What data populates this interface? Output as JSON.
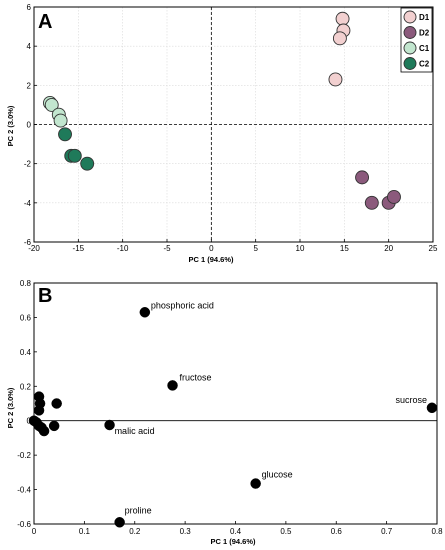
{
  "chart_data": [
    {
      "type": "scatter",
      "panel_label": "A",
      "xlabel": "PC 1 (94.6%)",
      "ylabel": "PC 2 (3.0%)",
      "xlim": [
        -20,
        25
      ],
      "ylim": [
        -6,
        6
      ],
      "xticks": [
        "-20",
        "-15",
        "-10",
        "-5",
        "0",
        "5",
        "10",
        "15",
        "20",
        "25"
      ],
      "yticks": [
        "-6",
        "-4",
        "-2",
        "0",
        "2",
        "4",
        "6"
      ],
      "grid": true,
      "zero_lines": "dashed",
      "legend_position": "top-right",
      "series": [
        {
          "name": "D1",
          "color": "#f2d0d0",
          "points": [
            [
              14.8,
              5.4
            ],
            [
              14.9,
              4.8
            ],
            [
              14.5,
              4.4
            ],
            [
              14.0,
              2.3
            ]
          ]
        },
        {
          "name": "D2",
          "color": "#8b5a7c",
          "points": [
            [
              17.0,
              -2.7
            ],
            [
              18.1,
              -4.0
            ],
            [
              20.0,
              -4.0
            ],
            [
              20.6,
              -3.7
            ]
          ]
        },
        {
          "name": "C1",
          "color": "#c2e6cf",
          "points": [
            [
              -18.2,
              1.1
            ],
            [
              -18.0,
              1.0
            ],
            [
              -17.2,
              0.5
            ],
            [
              -17.0,
              0.2
            ]
          ]
        },
        {
          "name": "C2",
          "color": "#1f7a5a",
          "points": [
            [
              -16.5,
              -0.5
            ],
            [
              -15.8,
              -1.6
            ],
            [
              -15.4,
              -1.6
            ],
            [
              -14.0,
              -2.0
            ]
          ]
        }
      ]
    },
    {
      "type": "scatter",
      "panel_label": "B",
      "xlabel": "PC 1 (94.6%)",
      "ylabel": "PC 2 (3.0%)",
      "xlim": [
        0,
        0.8
      ],
      "ylim": [
        -0.6,
        0.8
      ],
      "xticks": [
        "0",
        "0.1",
        "0.2",
        "0.3",
        "0.4",
        "0.5",
        "0.6",
        "0.7",
        "0.8"
      ],
      "yticks": [
        "-0.6",
        "-0.4",
        "-0.2",
        "0",
        "0.2",
        "0.4",
        "0.6",
        "0.8"
      ],
      "grid": false,
      "zero_lines": "solid-horizontal",
      "points": [
        {
          "label": "phosphoric acid",
          "x": 0.22,
          "y": 0.63
        },
        {
          "label": "fructose",
          "x": 0.275,
          "y": 0.205
        },
        {
          "label": "sucrose",
          "x": 0.79,
          "y": 0.075
        },
        {
          "label": "malic acid",
          "x": 0.15,
          "y": -0.025
        },
        {
          "label": "glucose",
          "x": 0.44,
          "y": -0.365
        },
        {
          "label": "proline",
          "x": 0.17,
          "y": -0.59
        },
        {
          "label": "",
          "x": 0.01,
          "y": 0.14
        },
        {
          "label": "",
          "x": 0.012,
          "y": 0.1
        },
        {
          "label": "",
          "x": 0.045,
          "y": 0.1
        },
        {
          "label": "",
          "x": 0.01,
          "y": 0.06
        },
        {
          "label": "",
          "x": 0.0,
          "y": 0.0
        },
        {
          "label": "",
          "x": 0.005,
          "y": -0.01
        },
        {
          "label": "",
          "x": 0.01,
          "y": -0.03
        },
        {
          "label": "",
          "x": 0.015,
          "y": -0.04
        },
        {
          "label": "",
          "x": 0.02,
          "y": -0.06
        },
        {
          "label": "",
          "x": 0.04,
          "y": -0.03
        }
      ]
    }
  ]
}
